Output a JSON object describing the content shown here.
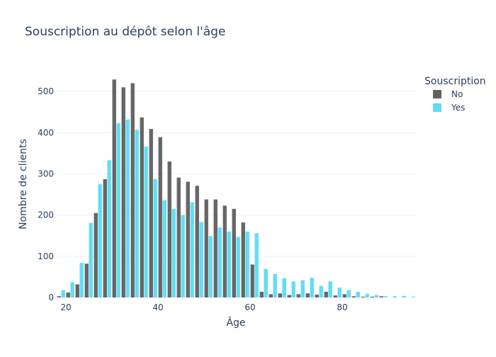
{
  "chart_data": {
    "type": "bar",
    "title": "Souscription au dépôt selon l'âge",
    "xlabel": "Âge",
    "ylabel": "Nombre de clients",
    "xlim": [
      18,
      96
    ],
    "ylim": [
      0,
      550
    ],
    "xticks": [
      20,
      40,
      60,
      80
    ],
    "yticks": [
      0,
      100,
      200,
      300,
      400,
      500
    ],
    "grid": true,
    "legend": {
      "title": "Souscription",
      "position": "top-right"
    },
    "bin_starts": [
      18,
      20,
      22,
      24,
      26,
      28,
      30,
      32,
      34,
      36,
      38,
      40,
      42,
      44,
      46,
      48,
      50,
      52,
      54,
      56,
      58,
      60,
      62,
      64,
      66,
      68,
      70,
      72,
      74,
      76,
      78,
      80,
      82,
      84,
      86,
      88,
      90,
      92,
      94
    ],
    "series": [
      {
        "name": "No",
        "color": "#636363",
        "values": [
          3,
          12,
          32,
          82,
          205,
          287,
          529,
          510,
          520,
          437,
          409,
          389,
          330,
          291,
          281,
          271,
          238,
          238,
          223,
          215,
          182,
          80,
          14,
          8,
          10,
          6,
          8,
          10,
          7,
          14,
          5,
          8,
          3,
          2,
          2,
          3,
          0,
          0,
          0
        ]
      },
      {
        "name": "Yes",
        "color": "#5fdcf5",
        "values": [
          18,
          37,
          84,
          181,
          275,
          333,
          423,
          432,
          407,
          366,
          287,
          236,
          215,
          200,
          231,
          183,
          149,
          170,
          160,
          147,
          160,
          156,
          69,
          57,
          47,
          39,
          42,
          48,
          28,
          39,
          24,
          18,
          14,
          9,
          6,
          3,
          3,
          4,
          2
        ]
      }
    ]
  }
}
